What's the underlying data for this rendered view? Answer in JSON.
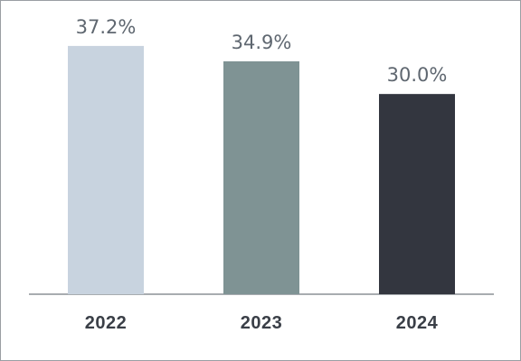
{
  "chart_data": {
    "type": "bar",
    "categories": [
      "2022",
      "2023",
      "2024"
    ],
    "values": [
      37.2,
      34.9,
      30.0
    ],
    "value_labels": [
      "37.2%",
      "34.9%",
      "30.0%"
    ],
    "colors": [
      "#c8d3df",
      "#7f9394",
      "#33363f"
    ],
    "title": "",
    "xlabel": "",
    "ylabel": "",
    "ylim": [
      0,
      40
    ],
    "grid": false,
    "legend": "none"
  }
}
